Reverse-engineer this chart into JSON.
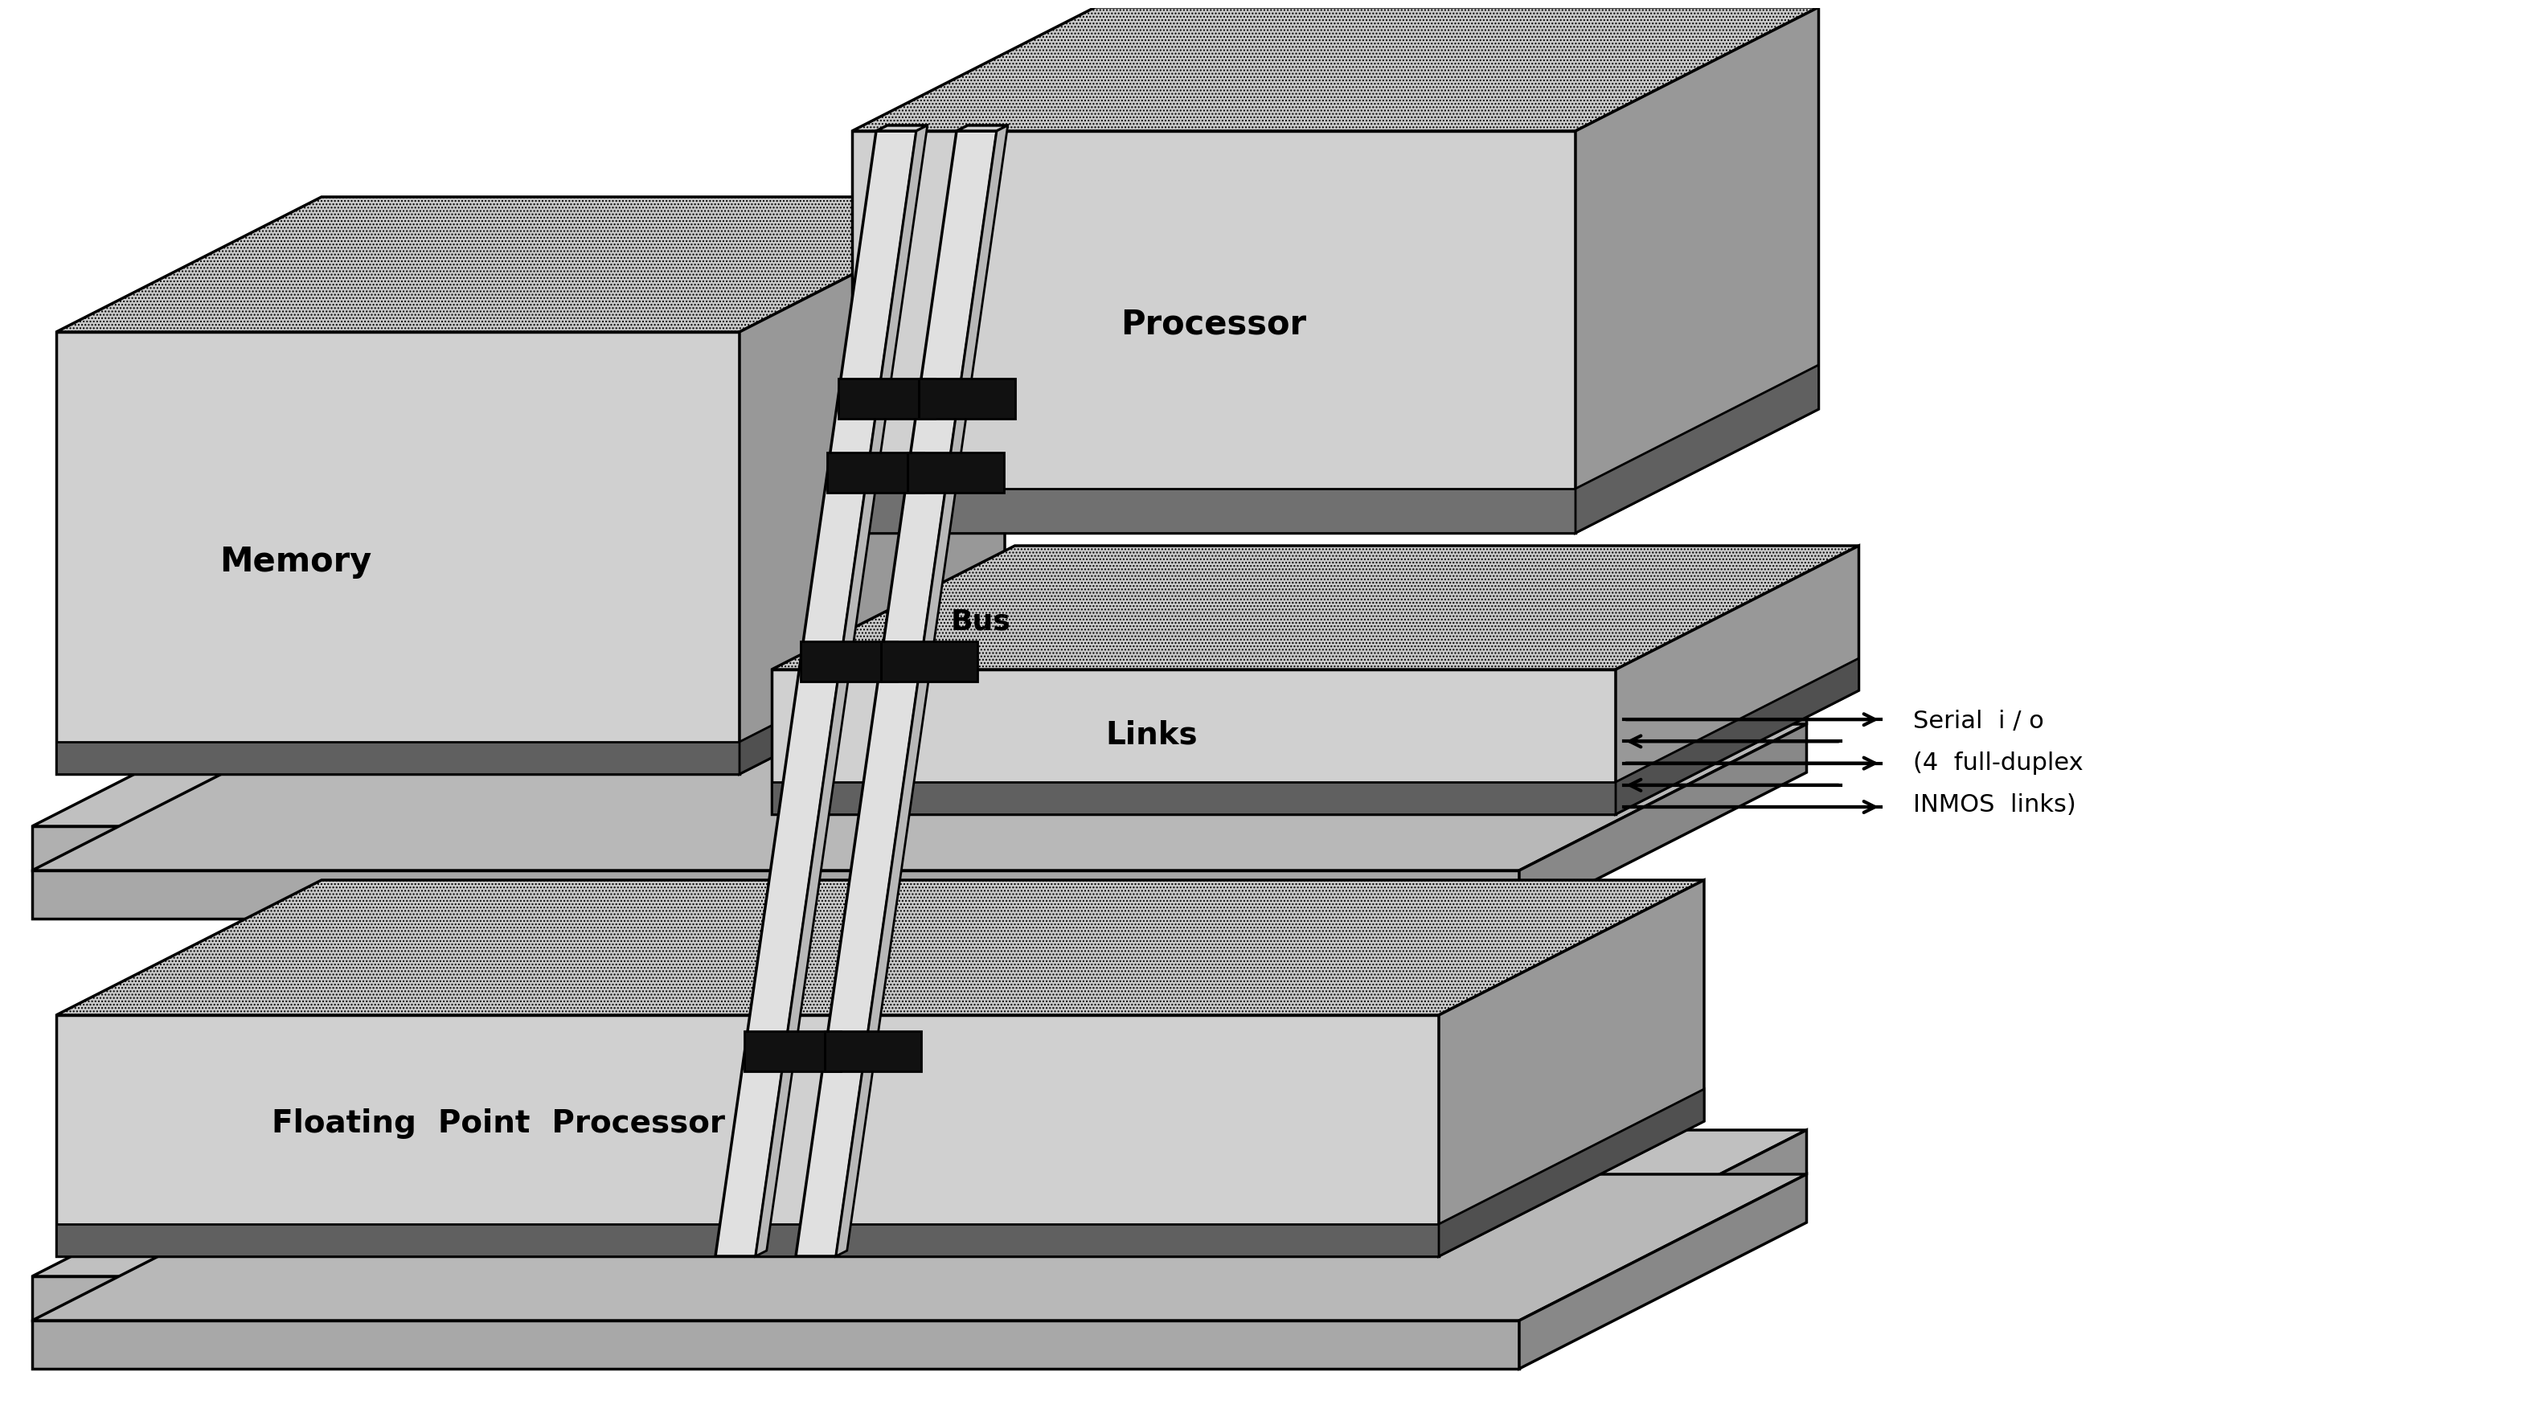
{
  "bg": "#ffffff",
  "labels": {
    "memory": "Memory",
    "processor": "Processor",
    "bus": "Bus",
    "links": "Links",
    "fpp": "Floating  Point  Processor",
    "serial_io": "Serial  i / o\n(4  full-duplex\nINMOS  links)"
  },
  "colors": {
    "top_light": "#d4d4d4",
    "top_mid": "#c0c0c0",
    "top_dark": "#a8a8a8",
    "side_light": "#e8e8e8",
    "side_mid": "#d8d8d8",
    "side_dark": "#b8b8b8",
    "front_light": "#f0f0f0",
    "front_mid": "#e0e0e0",
    "strip_dark": "#606060",
    "strip_darker": "#484848",
    "connector": "#111111",
    "black": "#000000",
    "white": "#ffffff"
  },
  "perspective": {
    "sx": 0.55,
    "sy": 0.28
  }
}
